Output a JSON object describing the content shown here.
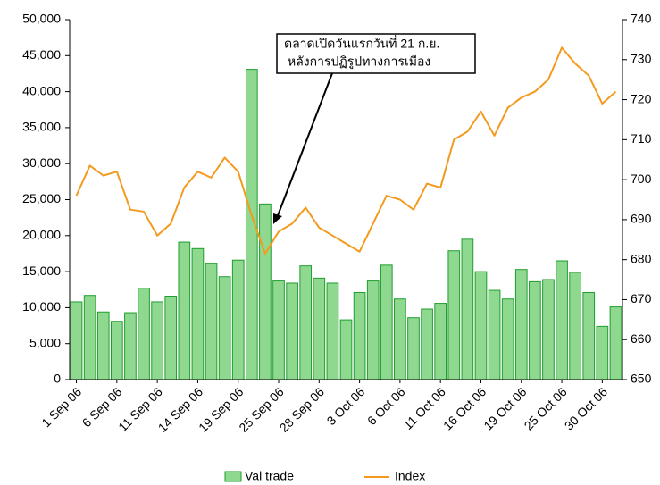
{
  "chart_data": {
    "type": "bar-line",
    "annotation": [
      "ตลาดเปิดวันแรกวันที่ 21 ก.ย.",
      "หลังการปฏิรูปทางการเมือง"
    ],
    "categories": [
      "1 Sep 06",
      null,
      null,
      "6 Sep 06",
      null,
      null,
      "11 Sep 06",
      null,
      null,
      "14 Sep 06",
      null,
      null,
      "19 Sep 06",
      null,
      null,
      "25 Sep 06",
      null,
      null,
      "28 Sep 06",
      null,
      null,
      "3 Oct 06",
      null,
      null,
      "6 Oct 06",
      null,
      null,
      "11 Oct 06",
      null,
      null,
      "16 Oct 06",
      null,
      null,
      "19 Oct 06",
      null,
      null,
      "25 Oct 06",
      null,
      null,
      "30 Oct 06",
      null
    ],
    "series": [
      {
        "name": "Val trade",
        "color": "#8fd88f",
        "stroke": "#1e9e2e",
        "values": [
          10800,
          11700,
          9400,
          8100,
          9300,
          12700,
          10800,
          11600,
          19100,
          18200,
          16100,
          14300,
          16600,
          43100,
          24400,
          13700,
          13400,
          15800,
          14100,
          13400,
          8300,
          12100,
          13700,
          15900,
          11200,
          8600,
          9800,
          10600,
          17900,
          19500,
          15000,
          12400,
          11200,
          15300,
          13600,
          13900,
          16500,
          14900,
          12100,
          7400,
          10100
        ]
      },
      {
        "name": "Index",
        "color": "#f39a1f",
        "axis": "y2",
        "values": [
          696,
          703.5,
          701,
          702,
          692.5,
          692,
          686,
          689,
          698,
          702,
          700.5,
          705.5,
          702,
          691,
          681.5,
          687,
          689,
          693,
          688,
          686,
          684,
          682,
          689,
          696,
          695,
          692.5,
          699,
          698,
          710,
          712,
          717,
          711,
          718,
          720.5,
          722,
          725,
          733,
          729,
          726,
          719,
          722
        ]
      }
    ],
    "ylim": [
      0,
      50000
    ],
    "yticks": [
      0,
      {
        "value": 5000,
        "label": "5,000"
      },
      {
        "value": 10000,
        "label": "10,000"
      },
      {
        "value": 15000,
        "label": "15,000"
      },
      {
        "value": 20000,
        "label": "20,000"
      },
      {
        "value": 25000,
        "label": "25,000"
      },
      {
        "value": 30000,
        "label": "30,000"
      },
      {
        "value": 35000,
        "label": "35,000"
      },
      {
        "value": 40000,
        "label": "40,000"
      },
      {
        "value": 45000,
        "label": "45,000"
      },
      {
        "value": 50000,
        "label": "50,000"
      }
    ],
    "y2lim": [
      650,
      740
    ],
    "y2ticks": [
      650,
      660,
      670,
      680,
      690,
      700,
      710,
      720,
      730,
      740
    ]
  }
}
